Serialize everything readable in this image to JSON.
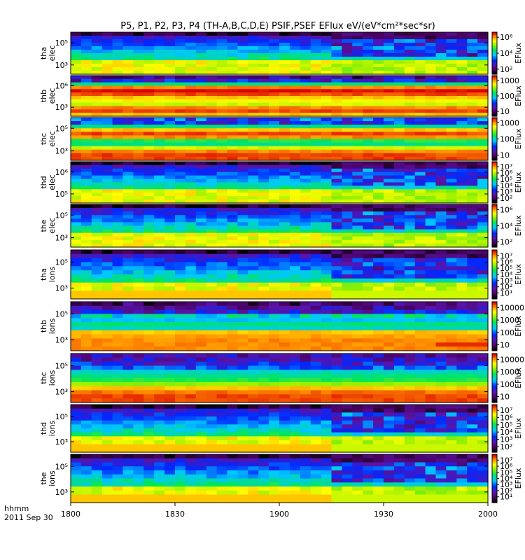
{
  "chart_data": {
    "type": "heatmap",
    "title": "P5, P1, P2, P3, P4 (TH-A,B,C,D,E) PSIF,PSEF EFlux eV/(eV*cm²*sec*sr)",
    "x_axis": {
      "tick_labels": [
        "1800",
        "1830",
        "1900",
        "1930",
        "2000"
      ],
      "prefix_label": "hhmm",
      "date_label": "2011 Sep 30",
      "range": [
        "18:00",
        "20:00"
      ]
    },
    "panels": [
      {
        "probe": "tha",
        "species": "elec",
        "label_1": "tha",
        "label_2": "elec",
        "y_ticks": [
          "10⁵",
          "10³"
        ],
        "cbar_ticks": [
          "10⁶",
          "10⁴",
          "10²"
        ],
        "cbar_label": "EFlux",
        "cbar_ticks_top_down": [
          "10⁶",
          "10⁴",
          "10²"
        ],
        "cbar_range": [
          1,
          6
        ],
        "shift_time": "19:10"
      },
      {
        "probe": "thb",
        "species": "elec",
        "label_1": "thb",
        "label_2": "elec",
        "y_ticks": [
          "10⁶",
          "10³"
        ],
        "cbar_ticks": [
          "1000",
          "100",
          "10"
        ],
        "cbar_label": "EFlux",
        "cbar_range": [
          0.7,
          4
        ],
        "shift_time": null
      },
      {
        "probe": "thc",
        "species": "elec",
        "label_1": "thc",
        "label_2": "elec",
        "y_ticks": [
          "10⁵",
          "10³"
        ],
        "cbar_ticks": [
          "1000",
          "100",
          "10"
        ],
        "cbar_label": "EFlux",
        "cbar_range": [
          0.7,
          4
        ],
        "shift_time": null
      },
      {
        "probe": "thd",
        "species": "elec",
        "label_1": "thd",
        "label_2": "elec",
        "y_ticks": [
          "10⁶",
          "10⁵"
        ],
        "cbar_ticks": [
          "10⁷",
          "10⁶",
          "10⁵",
          "10⁴",
          "10³",
          "10²"
        ],
        "cbar_label": "EFlux",
        "cbar_range": [
          1.5,
          7
        ],
        "shift_time": "19:10"
      },
      {
        "probe": "the",
        "species": "elec",
        "label_1": "the",
        "label_2": "elec",
        "y_ticks": [
          "10⁵",
          "10³"
        ],
        "cbar_ticks": [
          "10⁶",
          "10⁴",
          "10²"
        ],
        "cbar_label": "EFlux",
        "cbar_range": [
          1,
          6.5
        ],
        "shift_time": "19:10"
      },
      {
        "probe": "tha",
        "species": "ions",
        "label_1": "tha",
        "label_2": "ions",
        "y_ticks": [
          "10⁵",
          "10³"
        ],
        "cbar_ticks": [
          "10⁷",
          "10⁶",
          "10⁵",
          "10⁴",
          "10³",
          "10²",
          "10¹"
        ],
        "cbar_label": "EFlux",
        "cbar_range": [
          0.5,
          7
        ],
        "shift_time": "19:10"
      },
      {
        "probe": "thb",
        "species": "ions",
        "label_1": "thb",
        "label_2": "ions",
        "y_ticks": [
          "10⁵",
          "10³"
        ],
        "cbar_ticks": [
          "10000",
          "1000",
          "100",
          "10"
        ],
        "cbar_label": "EFlux",
        "cbar_range": [
          0.7,
          4.5
        ],
        "shift_time": null
      },
      {
        "probe": "thc",
        "species": "ions",
        "label_1": "thc",
        "label_2": "ions",
        "y_ticks": [
          "10⁵",
          "10³"
        ],
        "cbar_ticks": [
          "10000",
          "1000",
          "100",
          "10"
        ],
        "cbar_label": "EFlux",
        "cbar_range": [
          0.7,
          4.5
        ],
        "shift_time": null
      },
      {
        "probe": "thd",
        "species": "ions",
        "label_1": "thd",
        "label_2": "ions",
        "y_ticks": [
          "10⁵",
          "10³"
        ],
        "cbar_ticks": [
          "10⁷",
          "10⁶",
          "10⁵",
          "10⁴",
          "10³",
          "10²"
        ],
        "cbar_label": "EFlux",
        "cbar_range": [
          1.5,
          7
        ],
        "shift_time": "19:10"
      },
      {
        "probe": "the",
        "species": "ions",
        "label_1": "the",
        "label_2": "ions",
        "y_ticks": [
          "10⁵",
          "10³"
        ],
        "cbar_ticks": [
          "10⁷",
          "10⁶",
          "10⁵",
          "10⁴",
          "10³",
          "10²",
          "10¹"
        ],
        "cbar_label": "EFlux",
        "cbar_range": [
          0.5,
          7
        ],
        "shift_time": "19:10"
      }
    ],
    "colormap": "rainbow (black → purple → blue → cyan → green → yellow → red)"
  }
}
